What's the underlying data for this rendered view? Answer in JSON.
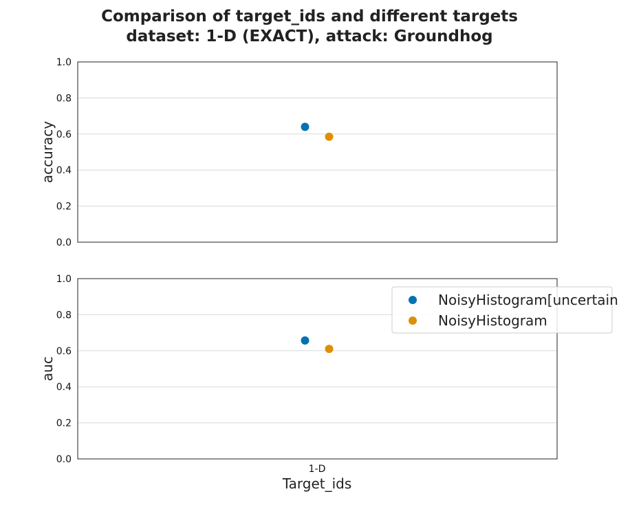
{
  "title_lines": [
    "Comparison of target_ids and different targets",
    "dataset: 1-D (EXACT), attack: Groundhog"
  ],
  "colors": {
    "NoisyHistogram[uncertain]": "#0173b2",
    "NoisyHistogram": "#de8f05",
    "grid": "#d9d9d9",
    "axes": "#222222"
  },
  "chart_data": [
    {
      "type": "scatter",
      "ylabel": "accuracy",
      "xlabel": "",
      "categories": [
        "1-D"
      ],
      "show_xticklabels": false,
      "ylim": [
        0.0,
        1.0
      ],
      "yticks": [
        "0.0",
        "0.2",
        "0.4",
        "0.6",
        "0.8",
        "1.0"
      ],
      "grid": "y",
      "series": [
        {
          "name": "NoisyHistogram[uncertain]",
          "values": [
            0.64
          ]
        },
        {
          "name": "NoisyHistogram",
          "values": [
            0.585
          ]
        }
      ]
    },
    {
      "type": "scatter",
      "ylabel": "auc",
      "xlabel": "Target_ids",
      "categories": [
        "1-D"
      ],
      "show_xticklabels": true,
      "ylim": [
        0.0,
        1.0
      ],
      "yticks": [
        "0.0",
        "0.2",
        "0.4",
        "0.6",
        "0.8",
        "1.0"
      ],
      "grid": "y",
      "legend": "right",
      "series": [
        {
          "name": "NoisyHistogram[uncertain]",
          "values": [
            0.657
          ]
        },
        {
          "name": "NoisyHistogram",
          "values": [
            0.61
          ]
        }
      ]
    }
  ],
  "legend": {
    "entries": [
      "NoisyHistogram[uncertain]",
      "NoisyHistogram"
    ]
  }
}
